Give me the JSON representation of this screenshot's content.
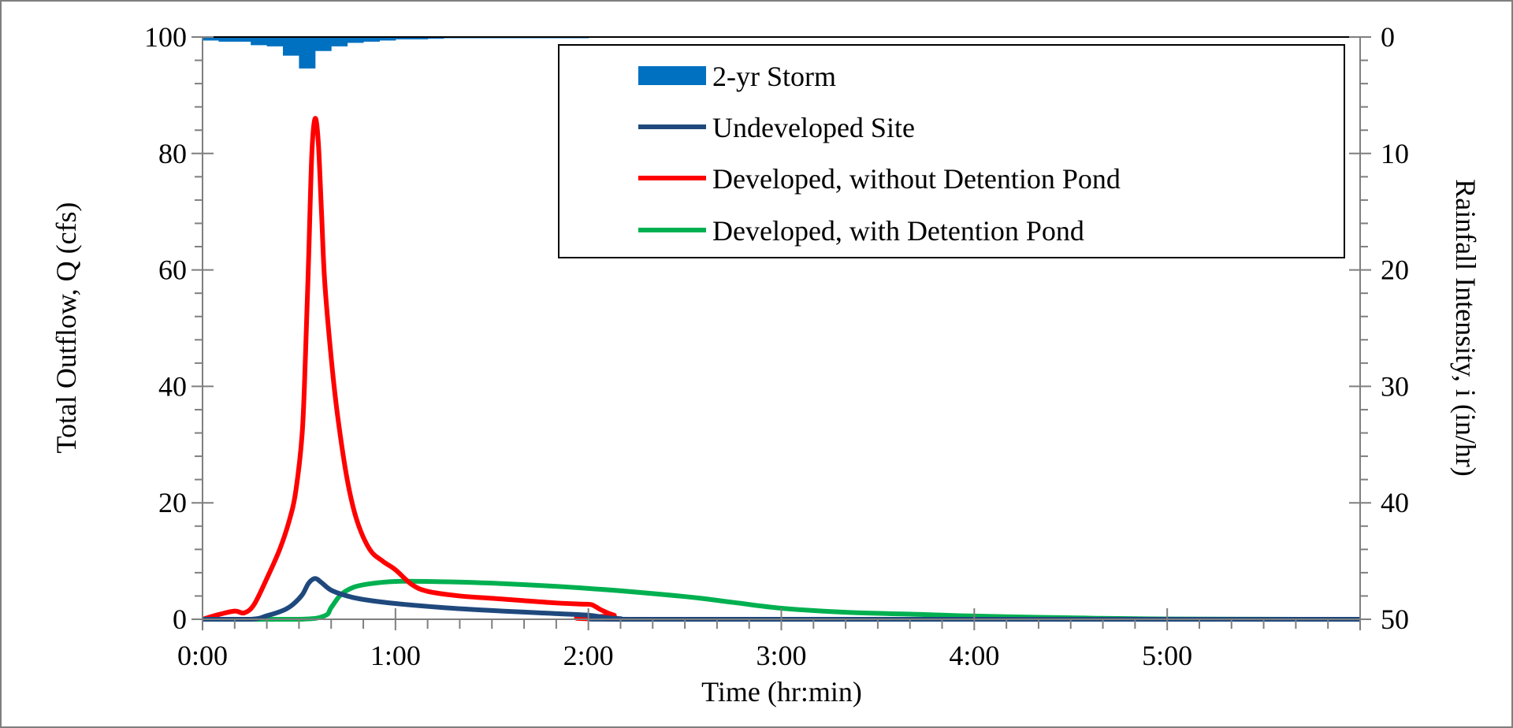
{
  "chart_data": {
    "type": "line",
    "xlabel": "Time (hr:min)",
    "ylabel": "Total Outflow, Q (cfs)",
    "y2label": "Rainfall Intensity, i (in/hr)",
    "xlim_hours": [
      0,
      6
    ],
    "ylim": [
      0,
      100
    ],
    "y2lim": [
      0,
      50
    ],
    "y2_inverted": true,
    "x_ticks": [
      {
        "v": 0,
        "label": "0:00"
      },
      {
        "v": 1,
        "label": "1:00"
      },
      {
        "v": 2,
        "label": "2:00"
      },
      {
        "v": 3,
        "label": "3:00"
      },
      {
        "v": 4,
        "label": "4:00"
      },
      {
        "v": 5,
        "label": "5:00"
      }
    ],
    "y_ticks": [
      "0",
      "20",
      "40",
      "60",
      "80",
      "100"
    ],
    "y2_ticks": [
      "0",
      "10",
      "20",
      "30",
      "40",
      "50"
    ],
    "grid": false,
    "legend_position": "top-right",
    "rainfall": {
      "name": "2-yr Storm",
      "color": "#0070C0",
      "bin_minutes": 5,
      "start_minutes": [
        0,
        5,
        10,
        15,
        20,
        25,
        30,
        35,
        40,
        45,
        50,
        55,
        60,
        65,
        70,
        75,
        80,
        85,
        90,
        95,
        100,
        105,
        110,
        115
      ],
      "intensity_in_hr": [
        0.3,
        0.4,
        0.4,
        0.7,
        0.8,
        1.6,
        2.7,
        1.2,
        0.8,
        0.5,
        0.4,
        0.3,
        0.2,
        0.2,
        0.15,
        0.1,
        0.1,
        0.1,
        0.1,
        0.1,
        0.1,
        0.1,
        0.1,
        0.1
      ]
    },
    "series": [
      {
        "name": "Undeveloped Site",
        "color": "#1F497D",
        "x_minutes": [
          0,
          15,
          20,
          25,
          28,
          31,
          33,
          35,
          37,
          40,
          45,
          50,
          60,
          75,
          90,
          105,
          120,
          125,
          130,
          140,
          360
        ],
        "y": [
          0,
          0,
          0.6,
          1.5,
          2.5,
          4.2,
          6.2,
          7.0,
          6.3,
          5.0,
          4.0,
          3.4,
          2.7,
          2.0,
          1.5,
          1.1,
          0.7,
          0.3,
          0.1,
          0,
          0
        ]
      },
      {
        "name": "Developed, without Detention Pond",
        "color": "#FF0000",
        "x_minutes": [
          0,
          5,
          10,
          13,
          16,
          20,
          24,
          27,
          29,
          31,
          32,
          33,
          34,
          35,
          36,
          37,
          38,
          40,
          42,
          45,
          48,
          52,
          56,
          60,
          65,
          70,
          80,
          90,
          100,
          110,
          118,
          121,
          124,
          128,
          135,
          360
        ],
        "y": [
          0,
          0.8,
          1.4,
          1.1,
          2.5,
          7,
          12,
          17,
          22,
          32,
          45,
          62,
          80,
          86,
          82,
          70,
          58,
          45,
          35,
          24,
          17,
          12,
          10,
          8.5,
          6,
          4.8,
          4,
          3.6,
          3.2,
          2.8,
          2.6,
          2.5,
          1.6,
          0.7,
          0,
          0
        ]
      },
      {
        "name": "Developed, with Detention Pond",
        "color": "#00B050",
        "x_minutes": [
          0,
          30,
          38,
          40,
          43,
          47,
          52,
          60,
          70,
          90,
          120,
          150,
          165,
          180,
          200,
          225,
          240,
          270,
          300,
          360
        ],
        "y": [
          0,
          0,
          0.6,
          2.0,
          4.2,
          5.5,
          6.1,
          6.5,
          6.5,
          6.2,
          5.3,
          3.9,
          2.9,
          1.9,
          1.2,
          0.8,
          0.55,
          0.25,
          0.05,
          0
        ]
      }
    ]
  }
}
